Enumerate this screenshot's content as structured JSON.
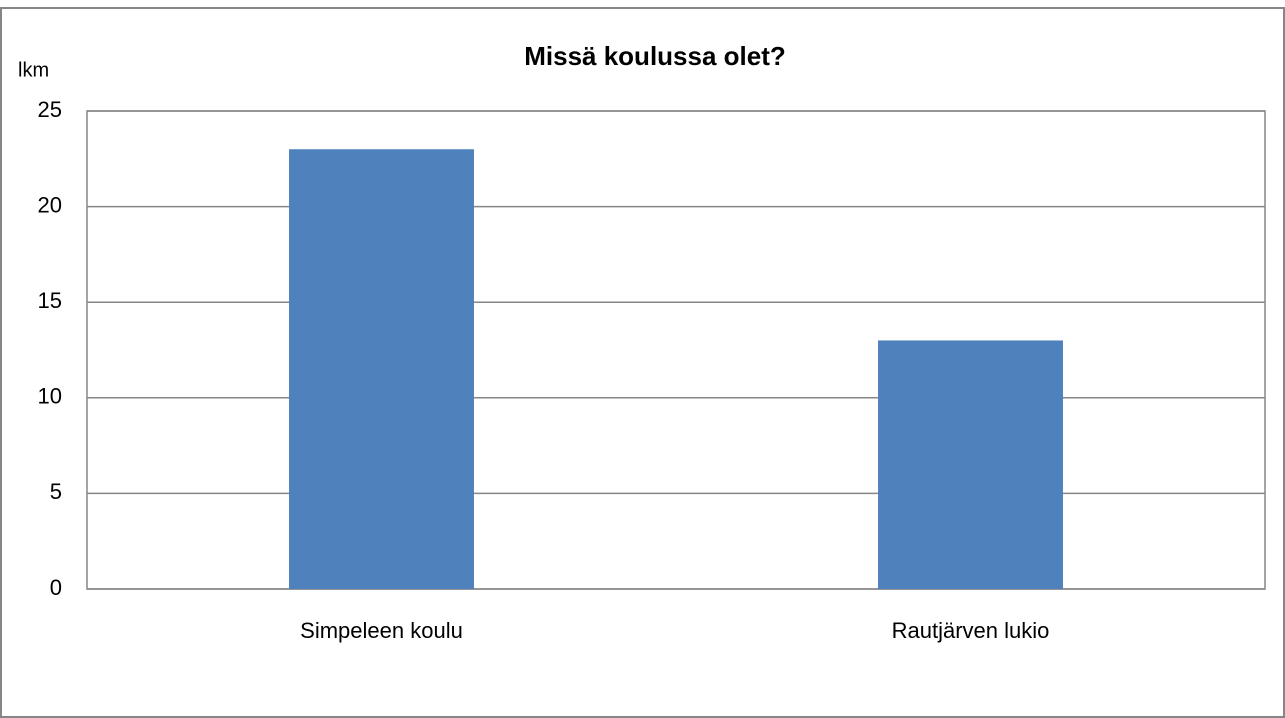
{
  "chart_data": {
    "type": "bar",
    "title": "Missä koulussa olet?",
    "y_label": "lkm",
    "categories": [
      "Simpeleen koulu",
      "Rautjärven lukio"
    ],
    "values": [
      23,
      13
    ],
    "color": "#4f81bd",
    "ylim": [
      0,
      25
    ],
    "yticks": [
      0,
      5,
      10,
      15,
      20,
      25
    ],
    "grid": true
  }
}
